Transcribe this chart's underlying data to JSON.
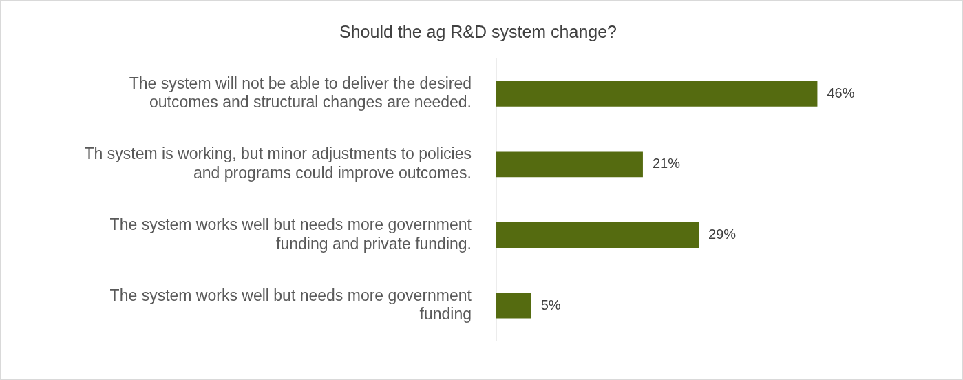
{
  "chart_data": {
    "type": "bar",
    "orientation": "horizontal",
    "title": "Should the ag R&D system change?",
    "categories": [
      "The system will not be able to deliver the desired outcomes and structural changes are needed.",
      "Th system is working, but minor adjustments to policies and programs could improve outcomes.",
      "The system works well but needs more government funding and private funding.",
      "The system works well but needs more government funding"
    ],
    "values": [
      46,
      21,
      29,
      5
    ],
    "value_labels": [
      "46%",
      "21%",
      "29%",
      "5%"
    ],
    "color": "#556b10",
    "legend": false
  }
}
